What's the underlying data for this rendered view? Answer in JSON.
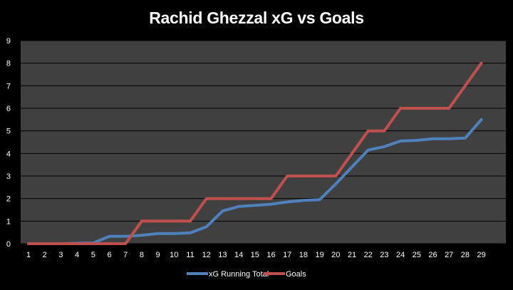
{
  "chart_data": {
    "type": "line",
    "title": "Rachid Ghezzal xG vs Goals",
    "x": [
      1,
      2,
      3,
      4,
      5,
      6,
      7,
      8,
      9,
      10,
      11,
      12,
      13,
      14,
      15,
      16,
      17,
      18,
      19,
      20,
      21,
      22,
      23,
      24,
      25,
      26,
      27,
      28,
      29
    ],
    "ylim": [
      0,
      9
    ],
    "yticks": [
      0,
      1,
      2,
      3,
      4,
      5,
      6,
      7,
      8,
      9
    ],
    "grid": true,
    "legend": "bottom",
    "series": [
      {
        "name": "xG Running Total",
        "color": "#4f81bd",
        "values": [
          0,
          0,
          0,
          0.02,
          0.03,
          0.33,
          0.33,
          0.37,
          0.45,
          0.45,
          0.48,
          0.75,
          1.45,
          1.65,
          1.7,
          1.75,
          1.85,
          1.92,
          1.95,
          2.65,
          3.4,
          4.15,
          4.3,
          4.55,
          4.58,
          4.65,
          4.65,
          4.68,
          5.5
        ]
      },
      {
        "name": "Goals",
        "color": "#c0504d",
        "values": [
          0,
          0,
          0,
          0,
          0,
          0,
          0,
          1,
          1,
          1,
          1,
          2,
          2,
          2,
          2,
          2,
          3,
          3,
          3,
          3,
          4,
          5,
          5,
          6,
          6,
          6,
          6,
          7,
          8
        ]
      }
    ]
  }
}
